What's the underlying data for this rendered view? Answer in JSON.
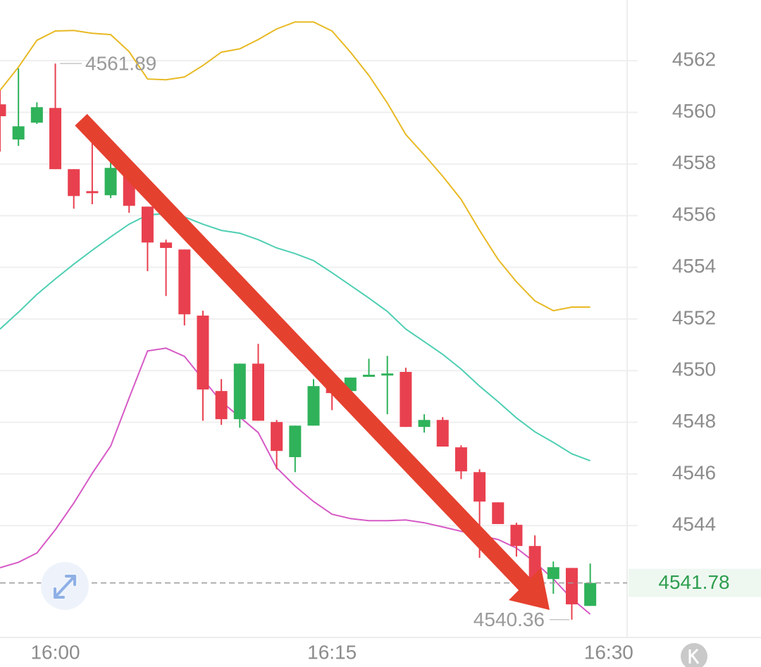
{
  "chart_data": {
    "type": "candlestick",
    "x": [
      "15:57",
      "15:58",
      "15:59",
      "16:00",
      "16:01",
      "16:02",
      "16:03",
      "16:04",
      "16:05",
      "16:06",
      "16:07",
      "16:08",
      "16:09",
      "16:10",
      "16:11",
      "16:12",
      "16:13",
      "16:14",
      "16:15",
      "16:16",
      "16:17",
      "16:18",
      "16:19",
      "16:20",
      "16:21",
      "16:22",
      "16:23",
      "16:24",
      "16:25",
      "16:26",
      "16:27",
      "16:28",
      "16:29"
    ],
    "open": [
      4560.31,
      4558.95,
      4559.6,
      4560.17,
      4557.8,
      4556.95,
      4556.79,
      4557.8,
      4556.35,
      4554.96,
      4554.69,
      4552.13,
      4549.21,
      4548.12,
      4550.27,
      4548.01,
      4546.65,
      4547.87,
      4549.67,
      4549.21,
      4549.76,
      4549.81,
      4549.95,
      4547.82,
      4548.09,
      4547.03,
      4546.07,
      4544.9,
      4544.03,
      4543.21,
      4541.93,
      4542.36,
      4540.89
    ],
    "high": [
      4560.85,
      4561.7,
      4560.39,
      4561.89,
      4557.8,
      4558.89,
      4558.07,
      4558.07,
      4556.35,
      4555.07,
      4554.69,
      4552.32,
      4549.67,
      4550.27,
      4551.04,
      4548.09,
      4547.87,
      4549.67,
      4549.95,
      4549.73,
      4550.46,
      4550.57,
      4550.11,
      4548.31,
      4548.2,
      4547.11,
      4546.18,
      4544.9,
      4544.11,
      4543.62,
      4542.61,
      4542.36,
      4542.53
    ],
    "low": [
      4558.48,
      4558.7,
      4559.55,
      4557.8,
      4556.27,
      4556.44,
      4556.68,
      4556.11,
      4553.85,
      4552.89,
      4551.75,
      4548.06,
      4547.9,
      4547.79,
      4548.06,
      4546.18,
      4546.07,
      4547.87,
      4548.47,
      4549.07,
      4549.76,
      4548.31,
      4547.82,
      4547.6,
      4547.06,
      4545.8,
      4542.75,
      4544.06,
      4542.8,
      4541.93,
      4541.36,
      4540.36,
      4540.89
    ],
    "close": [
      4559.85,
      4559.46,
      4560.2,
      4557.8,
      4556.76,
      4556.87,
      4557.85,
      4556.38,
      4554.96,
      4554.75,
      4552.18,
      4549.27,
      4548.12,
      4550.27,
      4548.06,
      4546.89,
      4547.87,
      4549.4,
      4549.13,
      4549.73,
      4549.84,
      4549.89,
      4547.82,
      4548.09,
      4547.06,
      4546.1,
      4544.93,
      4544.06,
      4543.21,
      4541.93,
      4542.39,
      4540.95,
      4541.78
    ],
    "up_color": "#2fb25a",
    "down_color": "#e8404f",
    "series": [
      {
        "color": "#e8b923",
        "values": [
          4560.85,
          4561.75,
          4562.79,
          4563.15,
          4563.17,
          4563.06,
          4563.01,
          4562.35,
          4561.29,
          4561.26,
          4561.37,
          4561.81,
          4562.33,
          4562.46,
          4562.82,
          4563.23,
          4563.5,
          4563.5,
          4563.15,
          4562.33,
          4561.43,
          4560.36,
          4559.14,
          4558.35,
          4557.53,
          4556.63,
          4555.43,
          4554.31,
          4553.44,
          4552.7,
          4552.32,
          4552.46,
          4552.46
        ]
      },
      {
        "color": "#4fcfb3",
        "values": [
          4551.61,
          4552.26,
          4552.95,
          4553.55,
          4554.12,
          4554.66,
          4555.18,
          4555.67,
          4556.03,
          4556.08,
          4555.95,
          4555.67,
          4555.43,
          4555.32,
          4555.07,
          4554.75,
          4554.53,
          4554.26,
          4553.79,
          4553.3,
          4552.81,
          4552.29,
          4551.61,
          4551.12,
          4550.63,
          4550.06,
          4549.4,
          4548.8,
          4548.17,
          4547.63,
          4547.22,
          4546.78,
          4546.51
        ]
      },
      {
        "color": "#d65ac6",
        "values": [
          4542.37,
          4542.58,
          4542.94,
          4543.84,
          4544.87,
          4546.02,
          4547.08,
          4548.94,
          4550.76,
          4550.87,
          4550.55,
          4549.67,
          4548.8,
          4548.2,
          4547.6,
          4546.24,
          4545.53,
          4544.93,
          4544.44,
          4544.27,
          4544.19,
          4544.19,
          4544.22,
          4544.11,
          4543.95,
          4543.78,
          4543.62,
          4543.46,
          4543.13,
          4542.58,
          4541.93,
          4541.17,
          4540.57
        ]
      }
    ],
    "xlim": [
      "15:57",
      "16:31"
    ],
    "xticks": [
      "16:00",
      "16:15",
      "16:30"
    ],
    "ylim": [
      4539.67,
      4564.35
    ],
    "yticks": [
      4544,
      4546,
      4548,
      4550,
      4552,
      4554,
      4556,
      4558,
      4560,
      4562
    ],
    "grid": true,
    "high_label": 4561.89,
    "low_label": 4540.36,
    "last_price": 4541.78,
    "last_price_color": "#2e9e4f"
  }
}
